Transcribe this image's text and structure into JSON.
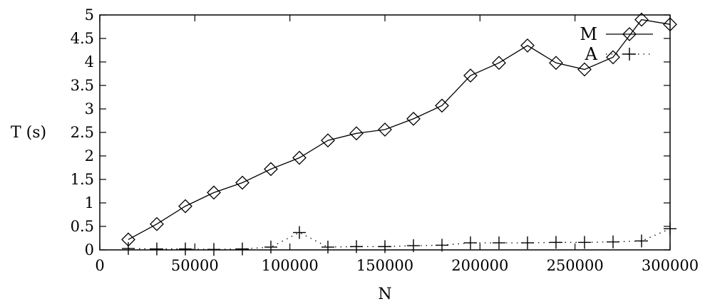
{
  "chart_data": {
    "type": "line",
    "title": "",
    "xlabel": "N",
    "ylabel": "T (s)",
    "xlim": [
      0,
      300000
    ],
    "ylim": [
      0,
      5
    ],
    "xticks": [
      0,
      50000,
      100000,
      150000,
      200000,
      250000,
      300000
    ],
    "xtick_labels": [
      "0",
      "50000",
      "100000",
      "150000",
      "200000",
      "250000",
      "300000"
    ],
    "yticks": [
      0,
      0.5,
      1,
      1.5,
      2,
      2.5,
      3,
      3.5,
      4,
      4.5,
      5
    ],
    "ytick_labels": [
      "0",
      "0.5",
      "1",
      "1.5",
      "2",
      "2.5",
      "3",
      "3.5",
      "4",
      "4.5",
      "5"
    ],
    "grid": false,
    "legend_position": "top-right",
    "series": [
      {
        "name": "M",
        "line_style": "solid",
        "marker": "diamond",
        "x": [
          15000,
          30000,
          45000,
          60000,
          75000,
          90000,
          105000,
          120000,
          135000,
          150000,
          165000,
          180000,
          195000,
          210000,
          225000,
          240000,
          255000,
          270000,
          285000,
          300000
        ],
        "y": [
          0.22,
          0.55,
          0.93,
          1.22,
          1.43,
          1.72,
          1.96,
          2.33,
          2.48,
          2.56,
          2.79,
          3.07,
          3.71,
          3.98,
          4.35,
          3.98,
          3.84,
          4.1,
          4.9,
          4.8
        ]
      },
      {
        "name": "A",
        "line_style": "dotted",
        "marker": "plus",
        "x": [
          15000,
          30000,
          45000,
          60000,
          75000,
          90000,
          105000,
          120000,
          135000,
          150000,
          165000,
          180000,
          195000,
          210000,
          225000,
          240000,
          255000,
          270000,
          285000,
          300000
        ],
        "y": [
          0.03,
          0.02,
          0.02,
          0.01,
          0.02,
          0.06,
          0.37,
          0.06,
          0.07,
          0.07,
          0.09,
          0.1,
          0.15,
          0.15,
          0.15,
          0.16,
          0.16,
          0.17,
          0.19,
          0.45
        ]
      }
    ]
  }
}
